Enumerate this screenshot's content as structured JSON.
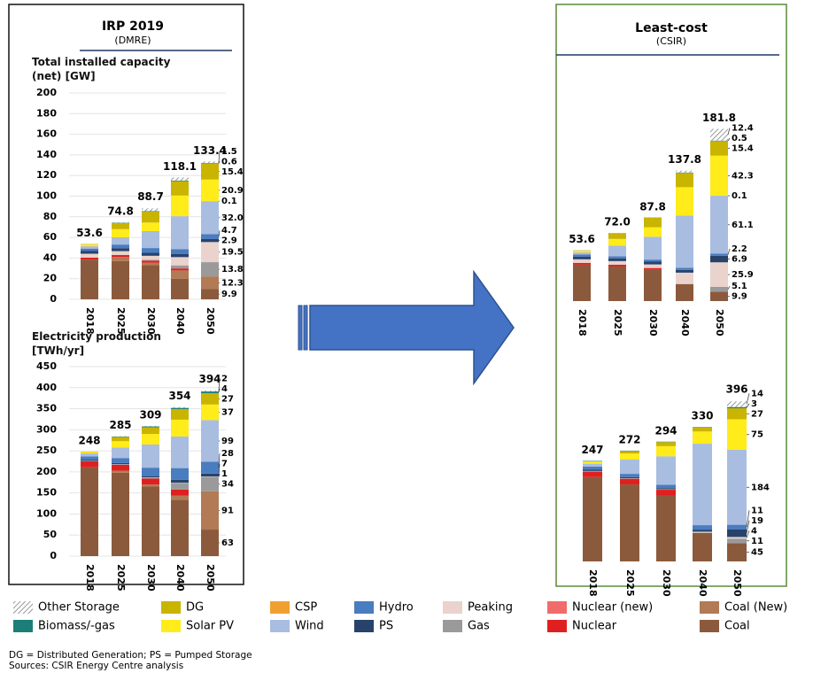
{
  "panels": [
    {
      "title": "IRP 2019",
      "subtitle": "(DMRE)"
    },
    {
      "title": "Least-cost",
      "subtitle": "(CSIR)"
    }
  ],
  "chart_data": [
    {
      "type": "bar",
      "stacked": true,
      "title": "Total installed capacity (net) [GW]",
      "categories": [
        "2018",
        "2025",
        "2030",
        "2040",
        "2050"
      ],
      "totals": [
        53.6,
        74.8,
        88.7,
        118.1,
        133.4
      ],
      "ylim": [
        0,
        200
      ],
      "yticks": [
        0,
        20,
        40,
        60,
        80,
        100,
        120,
        140,
        160,
        180,
        200
      ],
      "grid": true,
      "series": [
        {
          "name": "Coal",
          "color": "#8b5a3c",
          "values": [
            38.5,
            37,
            33,
            20,
            9.9
          ]
        },
        {
          "name": "Coal (New)",
          "color": "#b27a55",
          "values": [
            0,
            4,
            2.5,
            8,
            12.3
          ]
        },
        {
          "name": "Nuclear",
          "color": "#e02020",
          "values": [
            1.9,
            1.9,
            1.9,
            1.9,
            0
          ]
        },
        {
          "name": "Nuclear (new)",
          "color": "#f26b6b",
          "values": [
            0,
            0,
            0,
            0,
            0
          ]
        },
        {
          "name": "Gas",
          "color": "#9a9a9a",
          "values": [
            0,
            0,
            1,
            3,
            13.8
          ]
        },
        {
          "name": "Peaking",
          "color": "#ead3cc",
          "values": [
            3.8,
            3.8,
            3.8,
            8,
            19.5
          ]
        },
        {
          "name": "PS",
          "color": "#27436b",
          "values": [
            2.9,
            2.9,
            2.9,
            2.9,
            2.9
          ]
        },
        {
          "name": "Hydro",
          "color": "#4a7cc0",
          "values": [
            2.1,
            3.5,
            4.6,
            4.7,
            4.7
          ]
        },
        {
          "name": "Wind",
          "color": "#a9bde0",
          "values": [
            2.1,
            6.4,
            15.8,
            32,
            32
          ],
          "value_labels": [
            null,
            null,
            null,
            null,
            "32.0"
          ]
        },
        {
          "name": "CSP",
          "color": "#f0a030",
          "values": [
            0.3,
            0.6,
            0.6,
            0.1,
            0.1
          ]
        },
        {
          "name": "Solar PV",
          "color": "#ffec1a",
          "values": [
            1.5,
            7.9,
            8.3,
            20,
            20.9
          ]
        },
        {
          "name": "DG",
          "color": "#c9b400",
          "values": [
            0.5,
            6,
            10.5,
            14,
            15.4
          ]
        },
        {
          "name": "Biomass/-gas",
          "color": "#1b7f78",
          "values": [
            0,
            0.3,
            0.6,
            0.6,
            0.6
          ]
        },
        {
          "name": "Other Storage",
          "color": "#808080",
          "pattern": "hatch",
          "values": [
            0,
            0.4,
            2.6,
            2.9,
            1.5
          ]
        }
      ]
    },
    {
      "type": "bar",
      "stacked": true,
      "title": "Electricity production [TWh/yr]",
      "categories": [
        "2018",
        "2025",
        "2030",
        "2040",
        "2050"
      ],
      "totals": [
        248,
        285,
        309,
        354,
        394
      ],
      "ylim": [
        0,
        450
      ],
      "yticks": [
        0,
        50,
        100,
        150,
        200,
        250,
        300,
        350,
        400,
        450
      ],
      "grid": true,
      "series": [
        {
          "name": "Coal",
          "color": "#8b5a3c",
          "values": [
            211,
            198,
            165,
            134,
            63
          ]
        },
        {
          "name": "Coal (New)",
          "color": "#b27a55",
          "values": [
            0,
            5,
            5,
            10,
            91
          ]
        },
        {
          "name": "Nuclear",
          "color": "#e02020",
          "values": [
            14,
            14,
            14,
            14,
            0
          ]
        },
        {
          "name": "Gas",
          "color": "#9a9a9a",
          "values": [
            0,
            0,
            2,
            15,
            34
          ]
        },
        {
          "name": "Peaking",
          "color": "#ead3cc",
          "values": [
            1,
            1,
            1,
            1,
            1
          ]
        },
        {
          "name": "PS",
          "color": "#27436b",
          "values": [
            3,
            3,
            3,
            7,
            7
          ]
        },
        {
          "name": "Hydro",
          "color": "#4a7cc0",
          "values": [
            8,
            12,
            20,
            28,
            28
          ]
        },
        {
          "name": "Wind",
          "color": "#a9bde0",
          "values": [
            7,
            25,
            55,
            75,
            99
          ]
        },
        {
          "name": "Solar PV",
          "color": "#ffec1a",
          "values": [
            3,
            15,
            25,
            40,
            37
          ]
        },
        {
          "name": "DG",
          "color": "#c9b400",
          "values": [
            1,
            10,
            16,
            25,
            27
          ]
        },
        {
          "name": "Biomass/-gas",
          "color": "#1b7f78",
          "values": [
            0,
            1,
            2,
            3,
            4
          ]
        },
        {
          "name": "Other Storage",
          "color": "#808080",
          "pattern": "hatch",
          "values": [
            0,
            1,
            1,
            2,
            2
          ]
        }
      ]
    },
    {
      "type": "bar",
      "stacked": true,
      "categories": [
        "2018",
        "2025",
        "2030",
        "2040",
        "2050"
      ],
      "totals": [
        53.6,
        {
          "value": 72,
          "label": "72.0"
        },
        87.8,
        137.8,
        181.8
      ],
      "ylim": [
        0,
        200
      ],
      "grid": false,
      "series": [
        {
          "name": "Coal",
          "color": "#8b5a3c",
          "values": [
            38.4,
            36.5,
            33,
            18,
            9.9
          ]
        },
        {
          "name": "Nuclear",
          "color": "#e02020",
          "values": [
            1.9,
            1.9,
            1.9,
            0,
            0
          ]
        },
        {
          "name": "Gas",
          "color": "#9a9a9a",
          "values": [
            0,
            0,
            0,
            0,
            5.1
          ]
        },
        {
          "name": "Peaking",
          "color": "#ead3cc",
          "values": [
            3.8,
            3.8,
            3.8,
            12,
            25.9
          ]
        },
        {
          "name": "PS",
          "color": "#27436b",
          "values": [
            2.9,
            2.9,
            2.9,
            2.9,
            6.9
          ]
        },
        {
          "name": "Hydro",
          "color": "#4a7cc0",
          "values": [
            2.1,
            2.2,
            2.2,
            2.2,
            2.2
          ]
        },
        {
          "name": "Wind",
          "color": "#a9bde0",
          "values": [
            2.1,
            11,
            24,
            55,
            61.1
          ]
        },
        {
          "name": "CSP",
          "color": "#f0a030",
          "values": [
            0.3,
            0.3,
            0.1,
            0.1,
            0.1
          ]
        },
        {
          "name": "Solar PV",
          "color": "#ffec1a",
          "values": [
            1.5,
            7,
            10,
            30,
            42.3
          ]
        },
        {
          "name": "DG",
          "color": "#c9b400",
          "values": [
            0.5,
            6,
            10,
            15,
            15.4
          ]
        },
        {
          "name": "Biomass/-gas",
          "color": "#1b7f78",
          "values": [
            0.1,
            0.2,
            0.3,
            0.5,
            0.5
          ]
        },
        {
          "name": "Other Storage",
          "color": "#808080",
          "pattern": "hatch",
          "values": [
            0,
            0.2,
            0.2,
            2,
            12.4
          ]
        }
      ]
    },
    {
      "type": "bar",
      "stacked": true,
      "categories": [
        "2018",
        "2025",
        "2030",
        "2040",
        "2050"
      ],
      "totals": [
        247,
        272,
        294,
        330,
        396
      ],
      "ylim": [
        0,
        450
      ],
      "grid": false,
      "series": [
        {
          "name": "Coal",
          "color": "#8b5a3c",
          "values": [
            207,
            189,
            162,
            70,
            45
          ]
        },
        {
          "name": "Nuclear",
          "color": "#e02020",
          "values": [
            14,
            14,
            14,
            0,
            0
          ]
        },
        {
          "name": "Gas",
          "color": "#9a9a9a",
          "values": [
            0,
            0,
            0,
            1,
            11
          ]
        },
        {
          "name": "Peaking",
          "color": "#ead3cc",
          "values": [
            1,
            1,
            1,
            2,
            4
          ]
        },
        {
          "name": "PS",
          "color": "#27436b",
          "values": [
            3,
            3,
            3,
            5,
            19
          ]
        },
        {
          "name": "Hydro",
          "color": "#4a7cc0",
          "values": [
            8,
            8,
            8,
            11,
            11
          ]
        },
        {
          "name": "Wind",
          "color": "#a9bde0",
          "values": [
            7,
            35,
            70,
            200,
            184
          ]
        },
        {
          "name": "Solar PV",
          "color": "#ffec1a",
          "values": [
            5,
            15,
            25,
            30,
            75
          ]
        },
        {
          "name": "DG",
          "color": "#c9b400",
          "values": [
            1,
            6,
            10,
            10,
            27
          ]
        },
        {
          "name": "Biomass/-gas",
          "color": "#1b7f78",
          "values": [
            1,
            1,
            1,
            1,
            3
          ]
        },
        {
          "name": "Other Storage",
          "color": "#808080",
          "pattern": "hatch",
          "values": [
            0,
            0,
            0,
            0,
            14
          ]
        }
      ]
    }
  ],
  "footnotes": [
    "DG = Distributed Generation; PS = Pumped Storage",
    "Sources: CSIR Energy Centre analysis"
  ]
}
